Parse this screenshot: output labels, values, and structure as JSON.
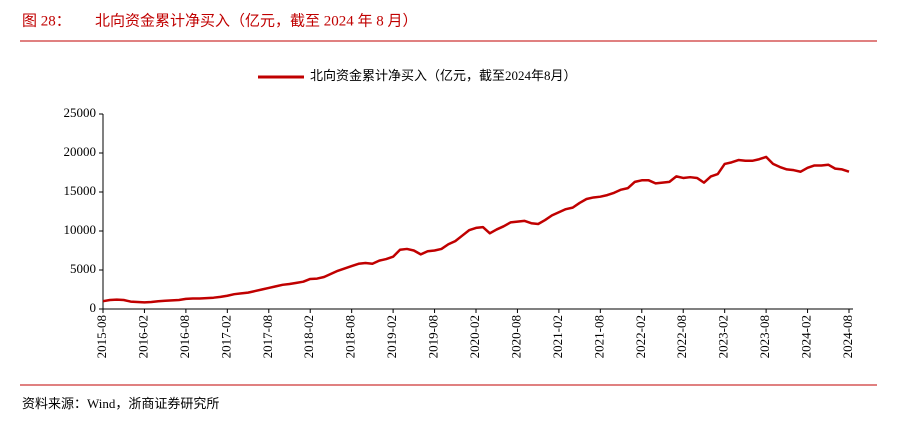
{
  "chart_data": {
    "type": "line",
    "header_label": "图 28：",
    "title": "北向资金累计净买入（亿元，截至 2024 年 8 月）",
    "source": "资料来源：Wind，浙商证券研究所",
    "legend": "top",
    "grid": false,
    "ylim": [
      0,
      25000
    ],
    "yticks": [
      0,
      5000,
      10000,
      15000,
      20000,
      25000
    ],
    "categories": [
      "2015-08",
      null,
      null,
      null,
      null,
      null,
      "2016-02",
      null,
      null,
      null,
      null,
      null,
      "2016-08",
      null,
      null,
      null,
      null,
      null,
      "2017-02",
      null,
      null,
      null,
      null,
      null,
      "2017-08",
      null,
      null,
      null,
      null,
      null,
      "2018-02",
      null,
      null,
      null,
      null,
      null,
      "2018-08",
      null,
      null,
      null,
      null,
      null,
      "2019-02",
      null,
      null,
      null,
      null,
      null,
      "2019-08",
      null,
      null,
      null,
      null,
      null,
      "2020-02",
      null,
      null,
      null,
      null,
      null,
      "2020-08",
      null,
      null,
      null,
      null,
      null,
      "2021-02",
      null,
      null,
      null,
      null,
      null,
      "2021-08",
      null,
      null,
      null,
      null,
      null,
      "2022-02",
      null,
      null,
      null,
      null,
      null,
      "2022-08",
      null,
      null,
      null,
      null,
      null,
      "2023-02",
      null,
      null,
      null,
      null,
      null,
      "2023-08",
      null,
      null,
      null,
      null,
      null,
      "2024-02",
      null,
      null,
      null,
      null,
      null,
      "2024-08"
    ],
    "series": [
      {
        "name": "北向资金累计净买入（亿元，截至2024年8月）",
        "color": "#c00000",
        "values": [
          1000,
          1150,
          1200,
          1150,
          950,
          900,
          850,
          900,
          1000,
          1050,
          1100,
          1150,
          1300,
          1350,
          1350,
          1400,
          1450,
          1550,
          1700,
          1900,
          2000,
          2100,
          2300,
          2500,
          2700,
          2900,
          3100,
          3200,
          3350,
          3500,
          3850,
          3900,
          4100,
          4500,
          4900,
          5200,
          5500,
          5800,
          5900,
          5800,
          6200,
          6400,
          6700,
          7600,
          7700,
          7500,
          7000,
          7400,
          7500,
          7700,
          8300,
          8700,
          9400,
          10100,
          10400,
          10500,
          9700,
          10200,
          10600,
          11100,
          11200,
          11300,
          11000,
          10900,
          11400,
          12000,
          12400,
          12800,
          13000,
          13600,
          14100,
          14300,
          14400,
          14600,
          14900,
          15300,
          15500,
          16300,
          16500,
          16500,
          16100,
          16200,
          16300,
          17000,
          16800,
          16900,
          16800,
          16200,
          17000,
          17300,
          18600,
          18800,
          19100,
          19000,
          19000,
          19200,
          19500,
          18600,
          18200,
          17900,
          17800,
          17600,
          18100,
          18400,
          18400,
          18500,
          18000,
          17900,
          17600
        ]
      }
    ]
  }
}
